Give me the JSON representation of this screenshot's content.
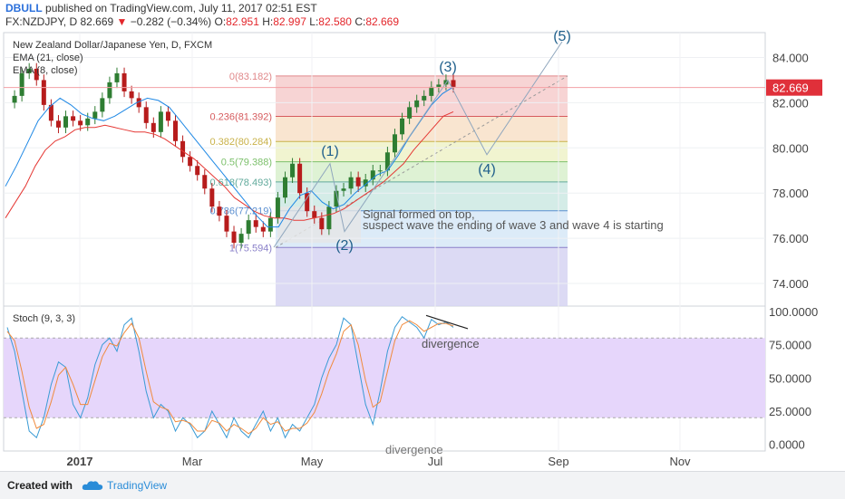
{
  "header": {
    "user": "DBULL",
    "published": "published on TradingView.com, July 11, 2017 02:51 EST",
    "symbol": "FX:NZDJPY, D",
    "last": "82.669",
    "change": "−0.282 (−0.34%)",
    "open_label": "O:",
    "open": "82.951",
    "high_label": "H:",
    "high": "82.997",
    "low_label": "L:",
    "low": "82.580",
    "close_label": "C:",
    "close": "82.669"
  },
  "legend": {
    "title": "New Zealand Dollar/Japanese Yen, D, FXCM",
    "ema1": "EMA (21, close)",
    "ema2": "EMA (8, close)",
    "stoch": "Stoch (9, 3, 3)"
  },
  "colors": {
    "up": "#2e7d32",
    "down": "#b71c1c",
    "ema21": "#e53935",
    "ema8": "#1e88e5",
    "price_tag": "#e0303a",
    "wave": "#1f5f8b",
    "stoch_k": "#3a9bd5",
    "stoch_d": "#f08a3c",
    "stoch_band": "#e6d6fb"
  },
  "annotations": {
    "wave1": "(1)",
    "wave2": "(2)",
    "wave3": "(3)",
    "wave4": "(4)",
    "wave5": "(5)",
    "note_line1": "Signal formed on top,",
    "note_line2": "suspect wave the ending of wave 3 and wave 4 is starting",
    "divergence1": "divergence",
    "divergence2": "divergence"
  },
  "footer": {
    "created_with": "Created with",
    "brand": "TradingView"
  },
  "chart_data": [
    {
      "type": "candlestick",
      "title": "New Zealand Dollar/Japanese Yen, D, FXCM",
      "x_ticks": [
        "2017",
        "Mar",
        "May",
        "Jul",
        "Sep",
        "Nov"
      ],
      "y_ticks": [
        "74.000",
        "76.000",
        "78.000",
        "80.000",
        "82.000",
        "84.000"
      ],
      "ylim": [
        73.0,
        85.1
      ],
      "last_price": "82.669",
      "fibonacci": [
        {
          "label": "0(83.182)",
          "value": 83.182
        },
        {
          "label": "0.236(81.392)",
          "value": 81.392
        },
        {
          "label": "0.382(80.284)",
          "value": 80.284
        },
        {
          "label": "0.5(79.388)",
          "value": 79.388
        },
        {
          "label": "0.618(78.493)",
          "value": 78.493
        },
        {
          "label": "0.786(77.219)",
          "value": 77.219
        },
        {
          "label": "1(75.594)",
          "value": 75.594
        }
      ],
      "waves": [
        {
          "label": "(1)",
          "value": 79.3
        },
        {
          "label": "(2)",
          "value": 76.3
        },
        {
          "label": "(3)",
          "value": 83.0
        },
        {
          "label": "(4)",
          "value": 79.7
        },
        {
          "label": "(5)",
          "value": 84.6
        }
      ],
      "price_path": [
        82.0,
        82.3,
        83.3,
        83.5,
        83.0,
        81.9,
        81.2,
        80.9,
        81.4,
        81.2,
        81.0,
        81.3,
        81.6,
        82.2,
        82.9,
        83.3,
        82.5,
        82.2,
        81.8,
        81.1,
        80.7,
        81.6,
        81.2,
        80.3,
        79.6,
        79.2,
        78.8,
        78.2,
        77.4,
        77.0,
        76.3,
        75.8,
        76.2,
        76.8,
        76.5,
        76.3,
        76.9,
        77.8,
        78.7,
        79.3,
        78.0,
        77.2,
        76.9,
        76.4,
        77.4,
        78.1,
        78.2,
        78.7,
        78.3,
        78.6,
        79.0,
        79.0,
        79.8,
        80.6,
        81.3,
        81.8,
        82.1,
        82.3,
        82.7,
        82.8,
        83.0,
        82.7
      ],
      "ema21_path": [
        76.9,
        77.6,
        78.3,
        79.2,
        79.9,
        80.3,
        80.5,
        80.8,
        80.9,
        80.9,
        81.0,
        80.9,
        80.8,
        80.7,
        80.7,
        80.6,
        80.4,
        80.1,
        79.8,
        79.5,
        79.1,
        78.7,
        78.3,
        77.8,
        77.5,
        77.2,
        77.0,
        76.9,
        76.9,
        76.8,
        76.8,
        76.9,
        77.0,
        77.1,
        77.3,
        77.6,
        77.9,
        78.2,
        78.5,
        78.9,
        79.3,
        79.9,
        80.4,
        80.9,
        81.4,
        81.6
      ],
      "ema8_path": [
        78.3,
        79.2,
        80.2,
        81.2,
        81.8,
        82.2,
        81.9,
        81.5,
        81.3,
        81.2,
        81.4,
        81.7,
        82.0,
        82.2,
        82.1,
        81.8,
        81.2,
        80.6,
        80.0,
        79.4,
        78.8,
        78.2,
        77.6,
        77.0,
        76.5,
        76.5,
        77.3,
        77.9,
        78.1,
        77.6,
        77.3,
        77.5,
        78.0,
        78.4,
        78.8,
        79.0,
        79.7,
        80.5,
        81.2,
        81.9,
        82.4,
        82.7
      ]
    },
    {
      "type": "line",
      "title": "Stoch (9, 3, 3)",
      "y_ticks": [
        "0.0000",
        "25.0000",
        "50.0000",
        "75.0000",
        "100.0000"
      ],
      "ylim": [
        -5,
        104
      ],
      "band": [
        20,
        80
      ],
      "series": [
        {
          "name": "K",
          "values": [
            88,
            70,
            40,
            10,
            5,
            20,
            45,
            62,
            58,
            30,
            20,
            35,
            60,
            75,
            80,
            70,
            90,
            95,
            70,
            40,
            20,
            30,
            25,
            10,
            20,
            15,
            5,
            10,
            25,
            15,
            5,
            20,
            10,
            5,
            15,
            25,
            10,
            20,
            5,
            15,
            10,
            20,
            30,
            50,
            65,
            75,
            95,
            90,
            60,
            30,
            15,
            40,
            70,
            88,
            96,
            92,
            88,
            80,
            94,
            90,
            92,
            88
          ]
        },
        {
          "name": "D",
          "values": [
            85,
            78,
            55,
            28,
            12,
            15,
            32,
            52,
            58,
            45,
            30,
            30,
            48,
            66,
            76,
            74,
            84,
            91,
            80,
            55,
            32,
            28,
            26,
            17,
            18,
            16,
            10,
            10,
            18,
            16,
            10,
            15,
            12,
            8,
            12,
            20,
            15,
            17,
            10,
            12,
            12,
            16,
            24,
            38,
            55,
            68,
            85,
            90,
            75,
            48,
            28,
            32,
            55,
            78,
            90,
            93,
            90,
            85,
            88,
            91,
            91,
            89
          ]
        }
      ]
    }
  ]
}
